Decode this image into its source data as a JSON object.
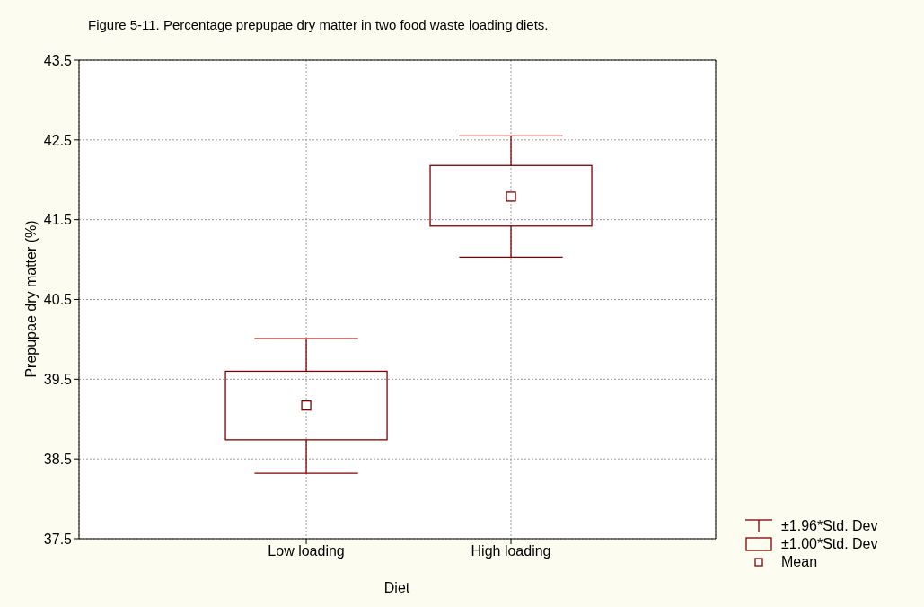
{
  "chart_data": {
    "type": "box",
    "title": "Figure 5-11. Percentage prepupae dry matter in two food waste loading diets.",
    "xlabel": "Diet",
    "ylabel": "Prepupae dry matter (%)",
    "categories": [
      "Low loading",
      "High loading"
    ],
    "color": "#800000",
    "boxes": [
      {
        "low": 38.32,
        "q1": 38.74,
        "q3": 39.6,
        "high": 40.01,
        "mean": 39.17
      },
      {
        "low": 41.03,
        "q1": 41.42,
        "q3": 42.18,
        "high": 42.55,
        "mean": 41.79
      }
    ],
    "ylim": [
      37.5,
      43.5
    ],
    "yticks": [
      37.5,
      38.5,
      39.5,
      40.5,
      41.5,
      42.5,
      43.5
    ],
    "grid": true,
    "marker": "square",
    "annotations": [
      "±1.96*Std. Dev",
      "±1.00*Std. Dev",
      "Mean"
    ]
  }
}
